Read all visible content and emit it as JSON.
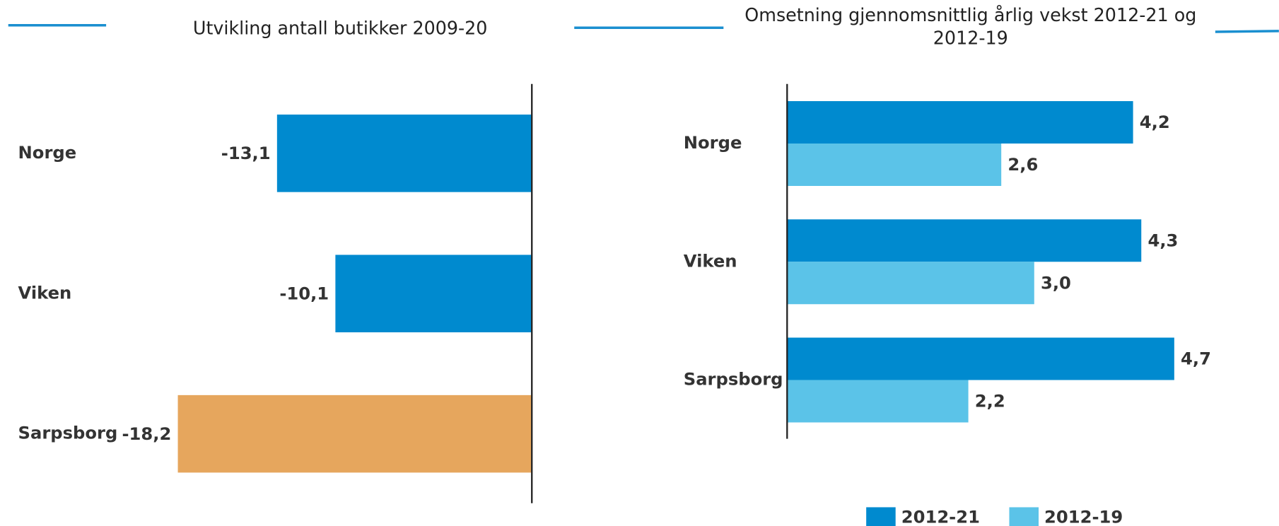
{
  "chart_data": [
    {
      "type": "bar",
      "orientation": "horizontal",
      "title": "Utvikling antall butikker 2009-20",
      "categories": [
        "Norge",
        "Viken",
        "Sarpsborg"
      ],
      "values": [
        -13.1,
        -10.1,
        -18.2
      ],
      "value_labels": [
        "-13,1",
        "-10,1",
        "-18,2"
      ],
      "colors": [
        "#008acf",
        "#008acf",
        "#e6a65d"
      ],
      "xlim": [
        -20,
        0
      ]
    },
    {
      "type": "bar",
      "orientation": "horizontal",
      "title": "Omsetning gjennomsnittlig årlig vekst 2012-21 og 2012-19",
      "categories": [
        "Norge",
        "Viken",
        "Sarpsborg"
      ],
      "series": [
        {
          "name": "2012-21",
          "color": "#008acf",
          "values": [
            4.2,
            4.3,
            4.7
          ],
          "value_labels": [
            "4,2",
            "4,3",
            "4,7"
          ]
        },
        {
          "name": "2012-19",
          "color": "#5bc3e8",
          "values": [
            2.6,
            3.0,
            2.2
          ],
          "value_labels": [
            "2,6",
            "3,0",
            "2,2"
          ]
        }
      ],
      "xlim": [
        0,
        5
      ],
      "legend": "bottom"
    }
  ]
}
